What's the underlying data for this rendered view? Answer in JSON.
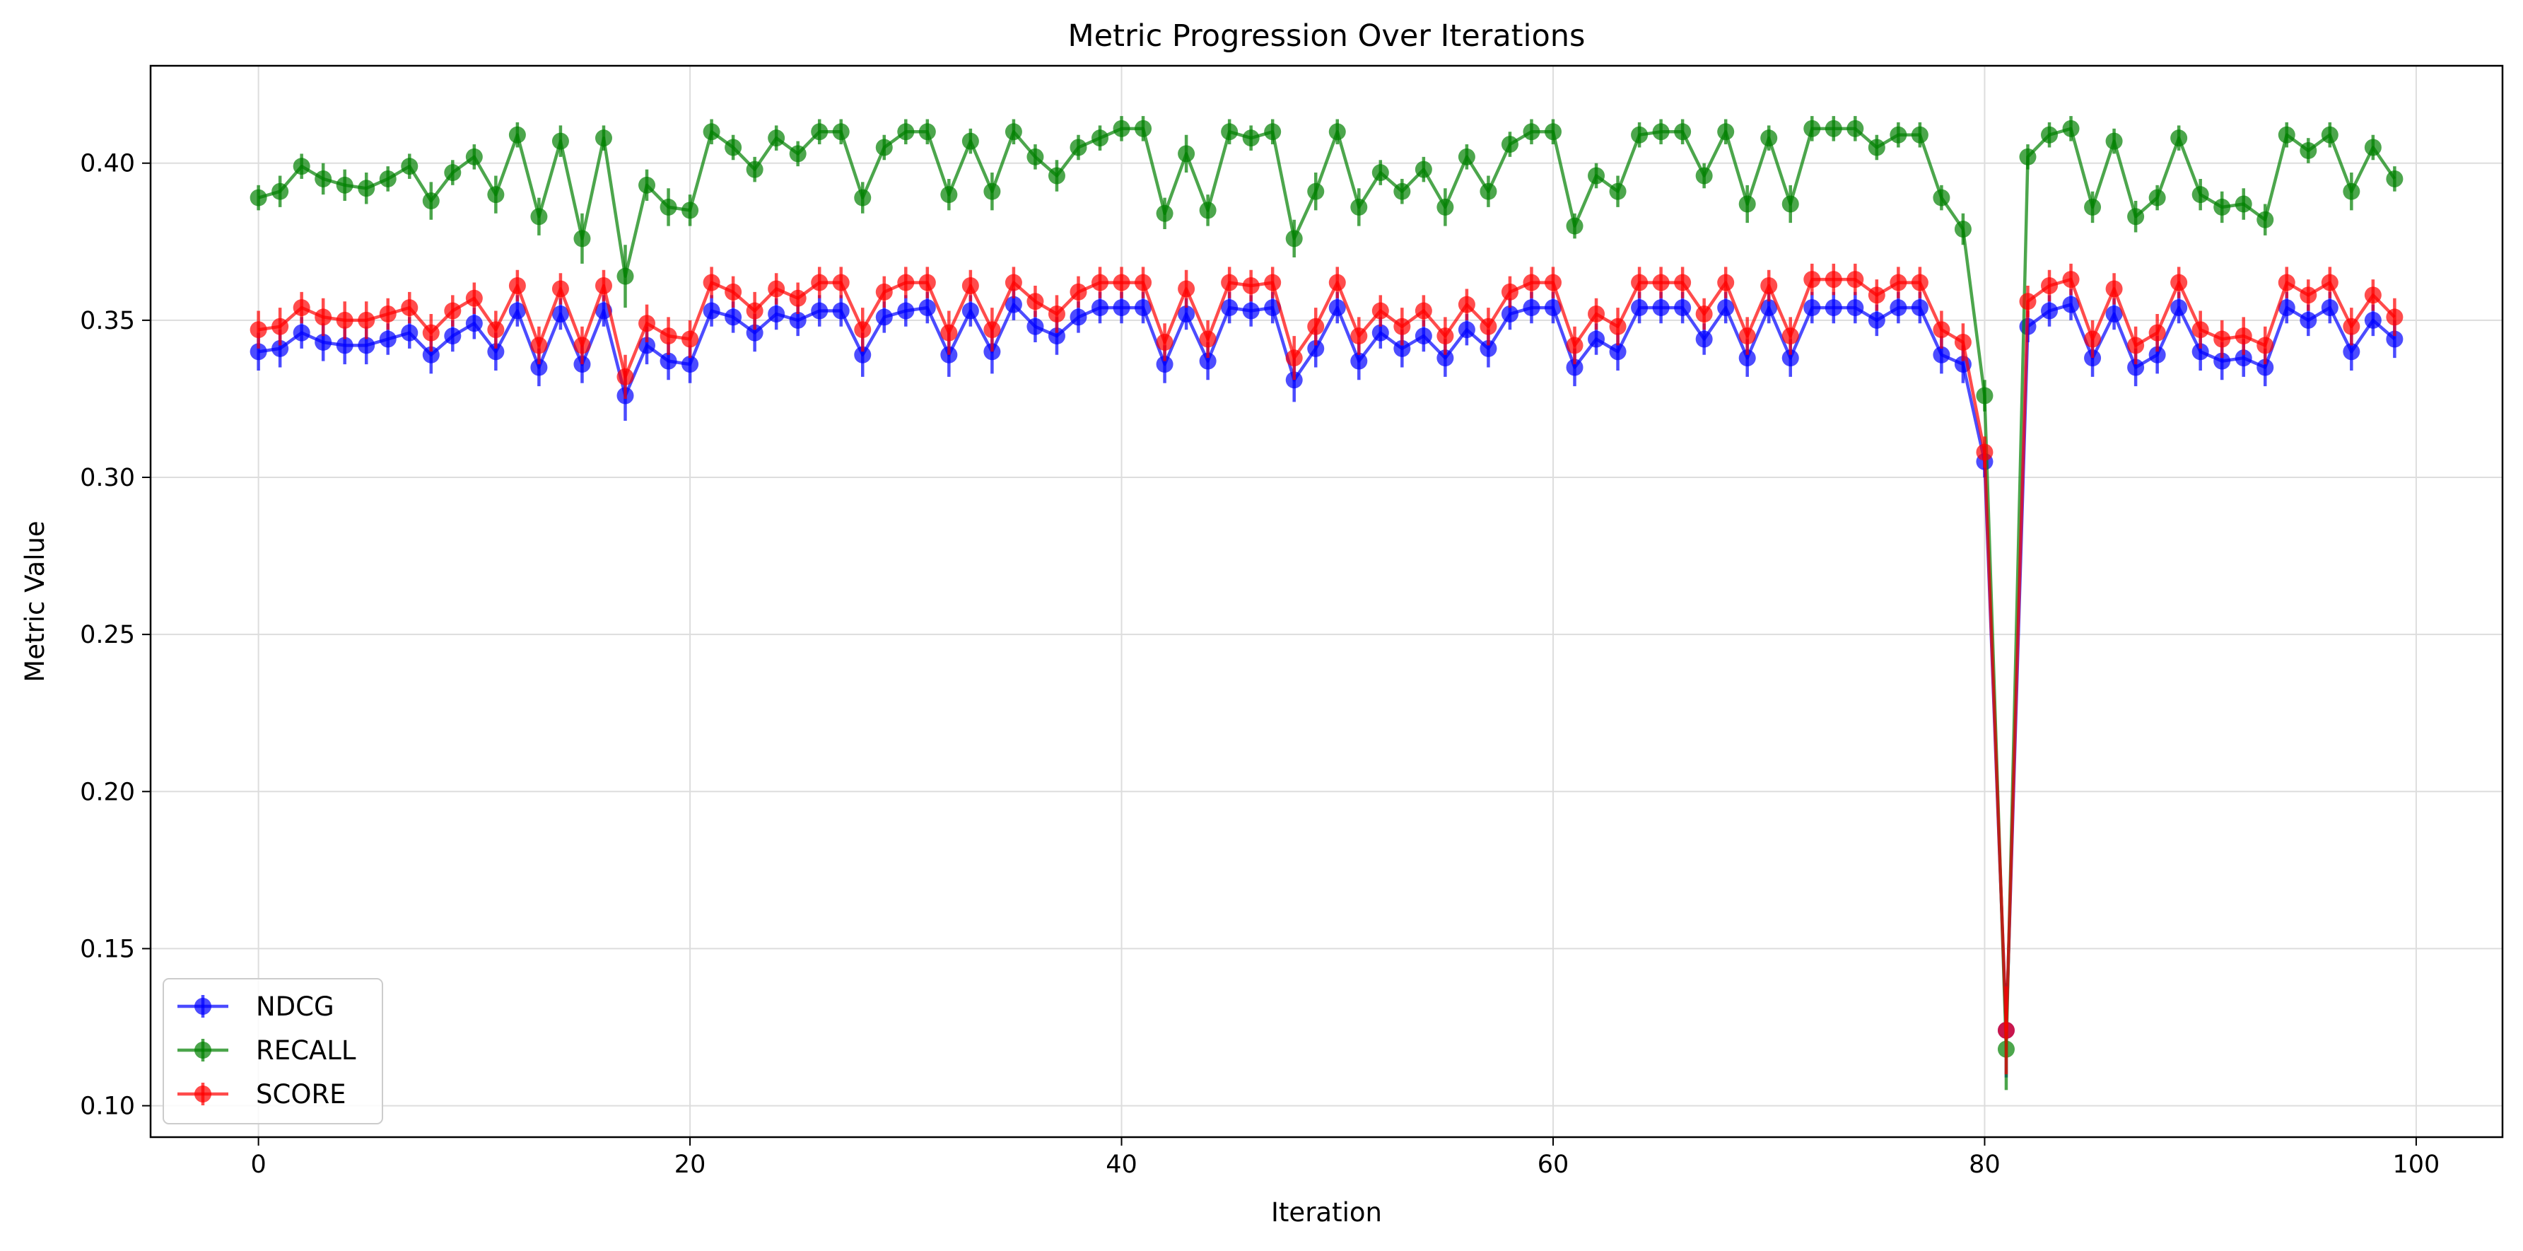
{
  "chart_data": {
    "type": "line",
    "title": "Metric Progression Over Iterations",
    "xlabel": "Iteration",
    "ylabel": "Metric Value",
    "xlim": [
      -5,
      104
    ],
    "ylim": [
      0.09,
      0.431
    ],
    "xticks": [
      0,
      20,
      40,
      60,
      80,
      100
    ],
    "yticks": [
      0.1,
      0.15,
      0.2,
      0.25,
      0.3,
      0.35,
      0.4
    ],
    "grid": true,
    "legend_position": "lower-left",
    "series": [
      {
        "name": "NDCG",
        "color": "#0000ff",
        "values": [
          0.34,
          0.341,
          0.346,
          0.343,
          0.342,
          0.342,
          0.344,
          0.346,
          0.339,
          0.345,
          0.349,
          0.34,
          0.353,
          0.335,
          0.352,
          0.336,
          0.353,
          0.326,
          0.342,
          0.337,
          0.336,
          0.353,
          0.351,
          0.346,
          0.352,
          0.35,
          0.353,
          0.353,
          0.339,
          0.351,
          0.353,
          0.354,
          0.339,
          0.353,
          0.34,
          0.355,
          0.348,
          0.345,
          0.351,
          0.354,
          0.354,
          0.354,
          0.336,
          0.352,
          0.337,
          0.354,
          0.353,
          0.354,
          0.331,
          0.341,
          0.354,
          0.337,
          0.346,
          0.341,
          0.345,
          0.338,
          0.347,
          0.341,
          0.352,
          0.354,
          0.354,
          0.335,
          0.344,
          0.34,
          0.354,
          0.354,
          0.354,
          0.344,
          0.354,
          0.338,
          0.354,
          0.338,
          0.354,
          0.354,
          0.354,
          0.35,
          0.354,
          0.354,
          0.339,
          0.336,
          0.305,
          0.124,
          0.348,
          0.353,
          0.355,
          0.338,
          0.352,
          0.335,
          0.339,
          0.354,
          0.34,
          0.337,
          0.338,
          0.335,
          0.354,
          0.35,
          0.354,
          0.34,
          0.35,
          0.344
        ],
        "errors": [
          0.006,
          0.006,
          0.005,
          0.006,
          0.006,
          0.006,
          0.005,
          0.005,
          0.006,
          0.005,
          0.005,
          0.006,
          0.005,
          0.006,
          0.005,
          0.006,
          0.005,
          0.008,
          0.006,
          0.006,
          0.006,
          0.005,
          0.005,
          0.006,
          0.005,
          0.005,
          0.005,
          0.005,
          0.007,
          0.005,
          0.005,
          0.005,
          0.007,
          0.005,
          0.007,
          0.005,
          0.005,
          0.006,
          0.005,
          0.005,
          0.005,
          0.005,
          0.006,
          0.005,
          0.006,
          0.005,
          0.005,
          0.005,
          0.007,
          0.006,
          0.005,
          0.006,
          0.005,
          0.006,
          0.005,
          0.006,
          0.005,
          0.006,
          0.005,
          0.005,
          0.005,
          0.006,
          0.005,
          0.006,
          0.005,
          0.005,
          0.005,
          0.005,
          0.005,
          0.006,
          0.005,
          0.006,
          0.005,
          0.005,
          0.005,
          0.005,
          0.005,
          0.005,
          0.006,
          0.006,
          0.005,
          0.015,
          0.005,
          0.005,
          0.005,
          0.006,
          0.005,
          0.006,
          0.006,
          0.005,
          0.006,
          0.006,
          0.006,
          0.006,
          0.005,
          0.005,
          0.005,
          0.006,
          0.005,
          0.006
        ]
      },
      {
        "name": "RECALL",
        "color": "#008000",
        "values": [
          0.389,
          0.391,
          0.399,
          0.395,
          0.393,
          0.392,
          0.395,
          0.399,
          0.388,
          0.397,
          0.402,
          0.39,
          0.409,
          0.383,
          0.407,
          0.376,
          0.408,
          0.364,
          0.393,
          0.386,
          0.385,
          0.41,
          0.405,
          0.398,
          0.408,
          0.403,
          0.41,
          0.41,
          0.389,
          0.405,
          0.41,
          0.41,
          0.39,
          0.407,
          0.391,
          0.41,
          0.402,
          0.396,
          0.405,
          0.408,
          0.411,
          0.411,
          0.384,
          0.403,
          0.385,
          0.41,
          0.408,
          0.41,
          0.376,
          0.391,
          0.41,
          0.386,
          0.397,
          0.391,
          0.398,
          0.386,
          0.402,
          0.391,
          0.406,
          0.41,
          0.41,
          0.38,
          0.396,
          0.391,
          0.409,
          0.41,
          0.41,
          0.396,
          0.41,
          0.387,
          0.408,
          0.387,
          0.411,
          0.411,
          0.411,
          0.405,
          0.409,
          0.409,
          0.389,
          0.379,
          0.326,
          0.118,
          0.402,
          0.409,
          0.411,
          0.386,
          0.407,
          0.383,
          0.389,
          0.408,
          0.39,
          0.386,
          0.387,
          0.382,
          0.409,
          0.404,
          0.409,
          0.391,
          0.405,
          0.395
        ],
        "errors": [
          0.004,
          0.005,
          0.004,
          0.005,
          0.005,
          0.005,
          0.004,
          0.004,
          0.006,
          0.004,
          0.004,
          0.006,
          0.004,
          0.006,
          0.005,
          0.008,
          0.004,
          0.01,
          0.005,
          0.006,
          0.005,
          0.004,
          0.004,
          0.004,
          0.004,
          0.004,
          0.004,
          0.004,
          0.005,
          0.004,
          0.004,
          0.004,
          0.005,
          0.004,
          0.006,
          0.004,
          0.004,
          0.005,
          0.004,
          0.004,
          0.004,
          0.004,
          0.005,
          0.006,
          0.005,
          0.004,
          0.004,
          0.004,
          0.006,
          0.006,
          0.004,
          0.006,
          0.004,
          0.004,
          0.004,
          0.006,
          0.004,
          0.005,
          0.004,
          0.004,
          0.004,
          0.004,
          0.004,
          0.005,
          0.004,
          0.004,
          0.004,
          0.004,
          0.004,
          0.006,
          0.004,
          0.006,
          0.004,
          0.004,
          0.004,
          0.004,
          0.004,
          0.004,
          0.004,
          0.005,
          0.005,
          0.013,
          0.004,
          0.004,
          0.004,
          0.005,
          0.004,
          0.005,
          0.004,
          0.004,
          0.005,
          0.005,
          0.005,
          0.005,
          0.004,
          0.004,
          0.004,
          0.006,
          0.004,
          0.004
        ]
      },
      {
        "name": "SCORE",
        "color": "#ff0000",
        "values": [
          0.347,
          0.348,
          0.354,
          0.351,
          0.35,
          0.35,
          0.352,
          0.354,
          0.346,
          0.353,
          0.357,
          0.347,
          0.361,
          0.342,
          0.36,
          0.342,
          0.361,
          0.332,
          0.349,
          0.345,
          0.344,
          0.362,
          0.359,
          0.353,
          0.36,
          0.357,
          0.362,
          0.362,
          0.347,
          0.359,
          0.362,
          0.362,
          0.346,
          0.361,
          0.347,
          0.362,
          0.356,
          0.352,
          0.359,
          0.362,
          0.362,
          0.362,
          0.343,
          0.36,
          0.344,
          0.362,
          0.361,
          0.362,
          0.338,
          0.348,
          0.362,
          0.345,
          0.353,
          0.348,
          0.353,
          0.345,
          0.355,
          0.348,
          0.359,
          0.362,
          0.362,
          0.342,
          0.352,
          0.348,
          0.362,
          0.362,
          0.362,
          0.352,
          0.362,
          0.345,
          0.361,
          0.345,
          0.363,
          0.363,
          0.363,
          0.358,
          0.362,
          0.362,
          0.347,
          0.343,
          0.308,
          0.124,
          0.356,
          0.361,
          0.363,
          0.344,
          0.36,
          0.342,
          0.346,
          0.362,
          0.347,
          0.344,
          0.345,
          0.342,
          0.362,
          0.358,
          0.362,
          0.348,
          0.358,
          0.351
        ],
        "errors": [
          0.006,
          0.006,
          0.005,
          0.006,
          0.006,
          0.006,
          0.005,
          0.005,
          0.006,
          0.005,
          0.005,
          0.006,
          0.005,
          0.006,
          0.005,
          0.006,
          0.005,
          0.007,
          0.006,
          0.006,
          0.006,
          0.005,
          0.005,
          0.006,
          0.005,
          0.005,
          0.005,
          0.005,
          0.007,
          0.005,
          0.005,
          0.005,
          0.007,
          0.005,
          0.007,
          0.005,
          0.005,
          0.006,
          0.005,
          0.005,
          0.005,
          0.005,
          0.006,
          0.006,
          0.006,
          0.005,
          0.005,
          0.005,
          0.007,
          0.006,
          0.005,
          0.006,
          0.005,
          0.006,
          0.005,
          0.006,
          0.005,
          0.006,
          0.005,
          0.005,
          0.005,
          0.006,
          0.005,
          0.006,
          0.005,
          0.005,
          0.005,
          0.005,
          0.005,
          0.006,
          0.005,
          0.006,
          0.005,
          0.005,
          0.005,
          0.005,
          0.005,
          0.005,
          0.006,
          0.006,
          0.005,
          0.014,
          0.005,
          0.005,
          0.005,
          0.006,
          0.005,
          0.006,
          0.006,
          0.005,
          0.006,
          0.006,
          0.006,
          0.006,
          0.005,
          0.005,
          0.005,
          0.006,
          0.005,
          0.006
        ]
      }
    ]
  }
}
